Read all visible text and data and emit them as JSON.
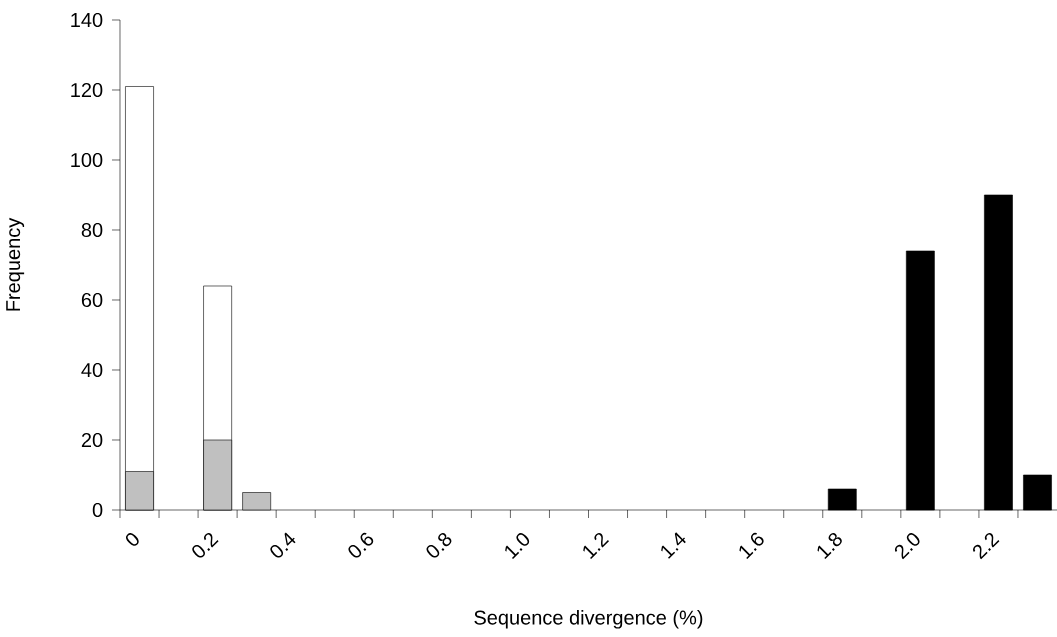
{
  "chart_data": {
    "type": "histogram",
    "xlabel": "Sequence divergence (%)",
    "ylabel": "Frequency",
    "bins": [
      0,
      0.1,
      0.2,
      0.3,
      0.4,
      0.5,
      0.6,
      0.7,
      0.8,
      0.9,
      1.0,
      1.1,
      1.2,
      1.3,
      1.4,
      1.5,
      1.6,
      1.7,
      1.8,
      1.9,
      2.0,
      2.1,
      2.2,
      2.3,
      2.4
    ],
    "series": [
      {
        "color": "#ffffff",
        "values": [
          121,
          0,
          64,
          0,
          0,
          0,
          0,
          0,
          0,
          0,
          0,
          0,
          0,
          0,
          0,
          0,
          0,
          0,
          0,
          0,
          0,
          0,
          0,
          0
        ]
      },
      {
        "color": "#c0c0c0",
        "values": [
          11,
          0,
          20,
          5,
          0,
          0,
          0,
          0,
          0,
          0,
          0,
          0,
          0,
          0,
          0,
          0,
          0,
          0,
          0,
          0,
          0,
          0,
          0,
          0
        ]
      },
      {
        "color": "#000000",
        "values": [
          0,
          0,
          0,
          0,
          0,
          0,
          0,
          0,
          0,
          0,
          0,
          0,
          0,
          0,
          0,
          0,
          0,
          0,
          6,
          0,
          74,
          0,
          90,
          10
        ]
      }
    ],
    "xlim": [
      0,
      2.4
    ],
    "ylim": [
      0,
      140
    ],
    "xticks": [
      {
        "value": 0,
        "label": "0"
      },
      {
        "value": 0.1,
        "label": null
      },
      {
        "value": 0.2,
        "label": "0.2"
      },
      {
        "value": 0.3,
        "label": null
      },
      {
        "value": 0.4,
        "label": "0.4"
      },
      {
        "value": 0.5,
        "label": null
      },
      {
        "value": 0.6,
        "label": "0.6"
      },
      {
        "value": 0.7,
        "label": null
      },
      {
        "value": 0.8,
        "label": "0.8"
      },
      {
        "value": 0.9,
        "label": null
      },
      {
        "value": 1.0,
        "label": "1.0"
      },
      {
        "value": 1.1,
        "label": null
      },
      {
        "value": 1.2,
        "label": "1.2"
      },
      {
        "value": 1.3,
        "label": null
      },
      {
        "value": 1.4,
        "label": "1.4"
      },
      {
        "value": 1.5,
        "label": null
      },
      {
        "value": 1.6,
        "label": "1.6"
      },
      {
        "value": 1.7,
        "label": null
      },
      {
        "value": 1.8,
        "label": "1.8"
      },
      {
        "value": 1.9,
        "label": null
      },
      {
        "value": 2.0,
        "label": "2.0"
      },
      {
        "value": 2.1,
        "label": null
      },
      {
        "value": 2.2,
        "label": "2.2"
      },
      {
        "value": 2.3,
        "label": null
      }
    ],
    "yticks": [
      0,
      20,
      40,
      60,
      80,
      100,
      120,
      140
    ]
  }
}
